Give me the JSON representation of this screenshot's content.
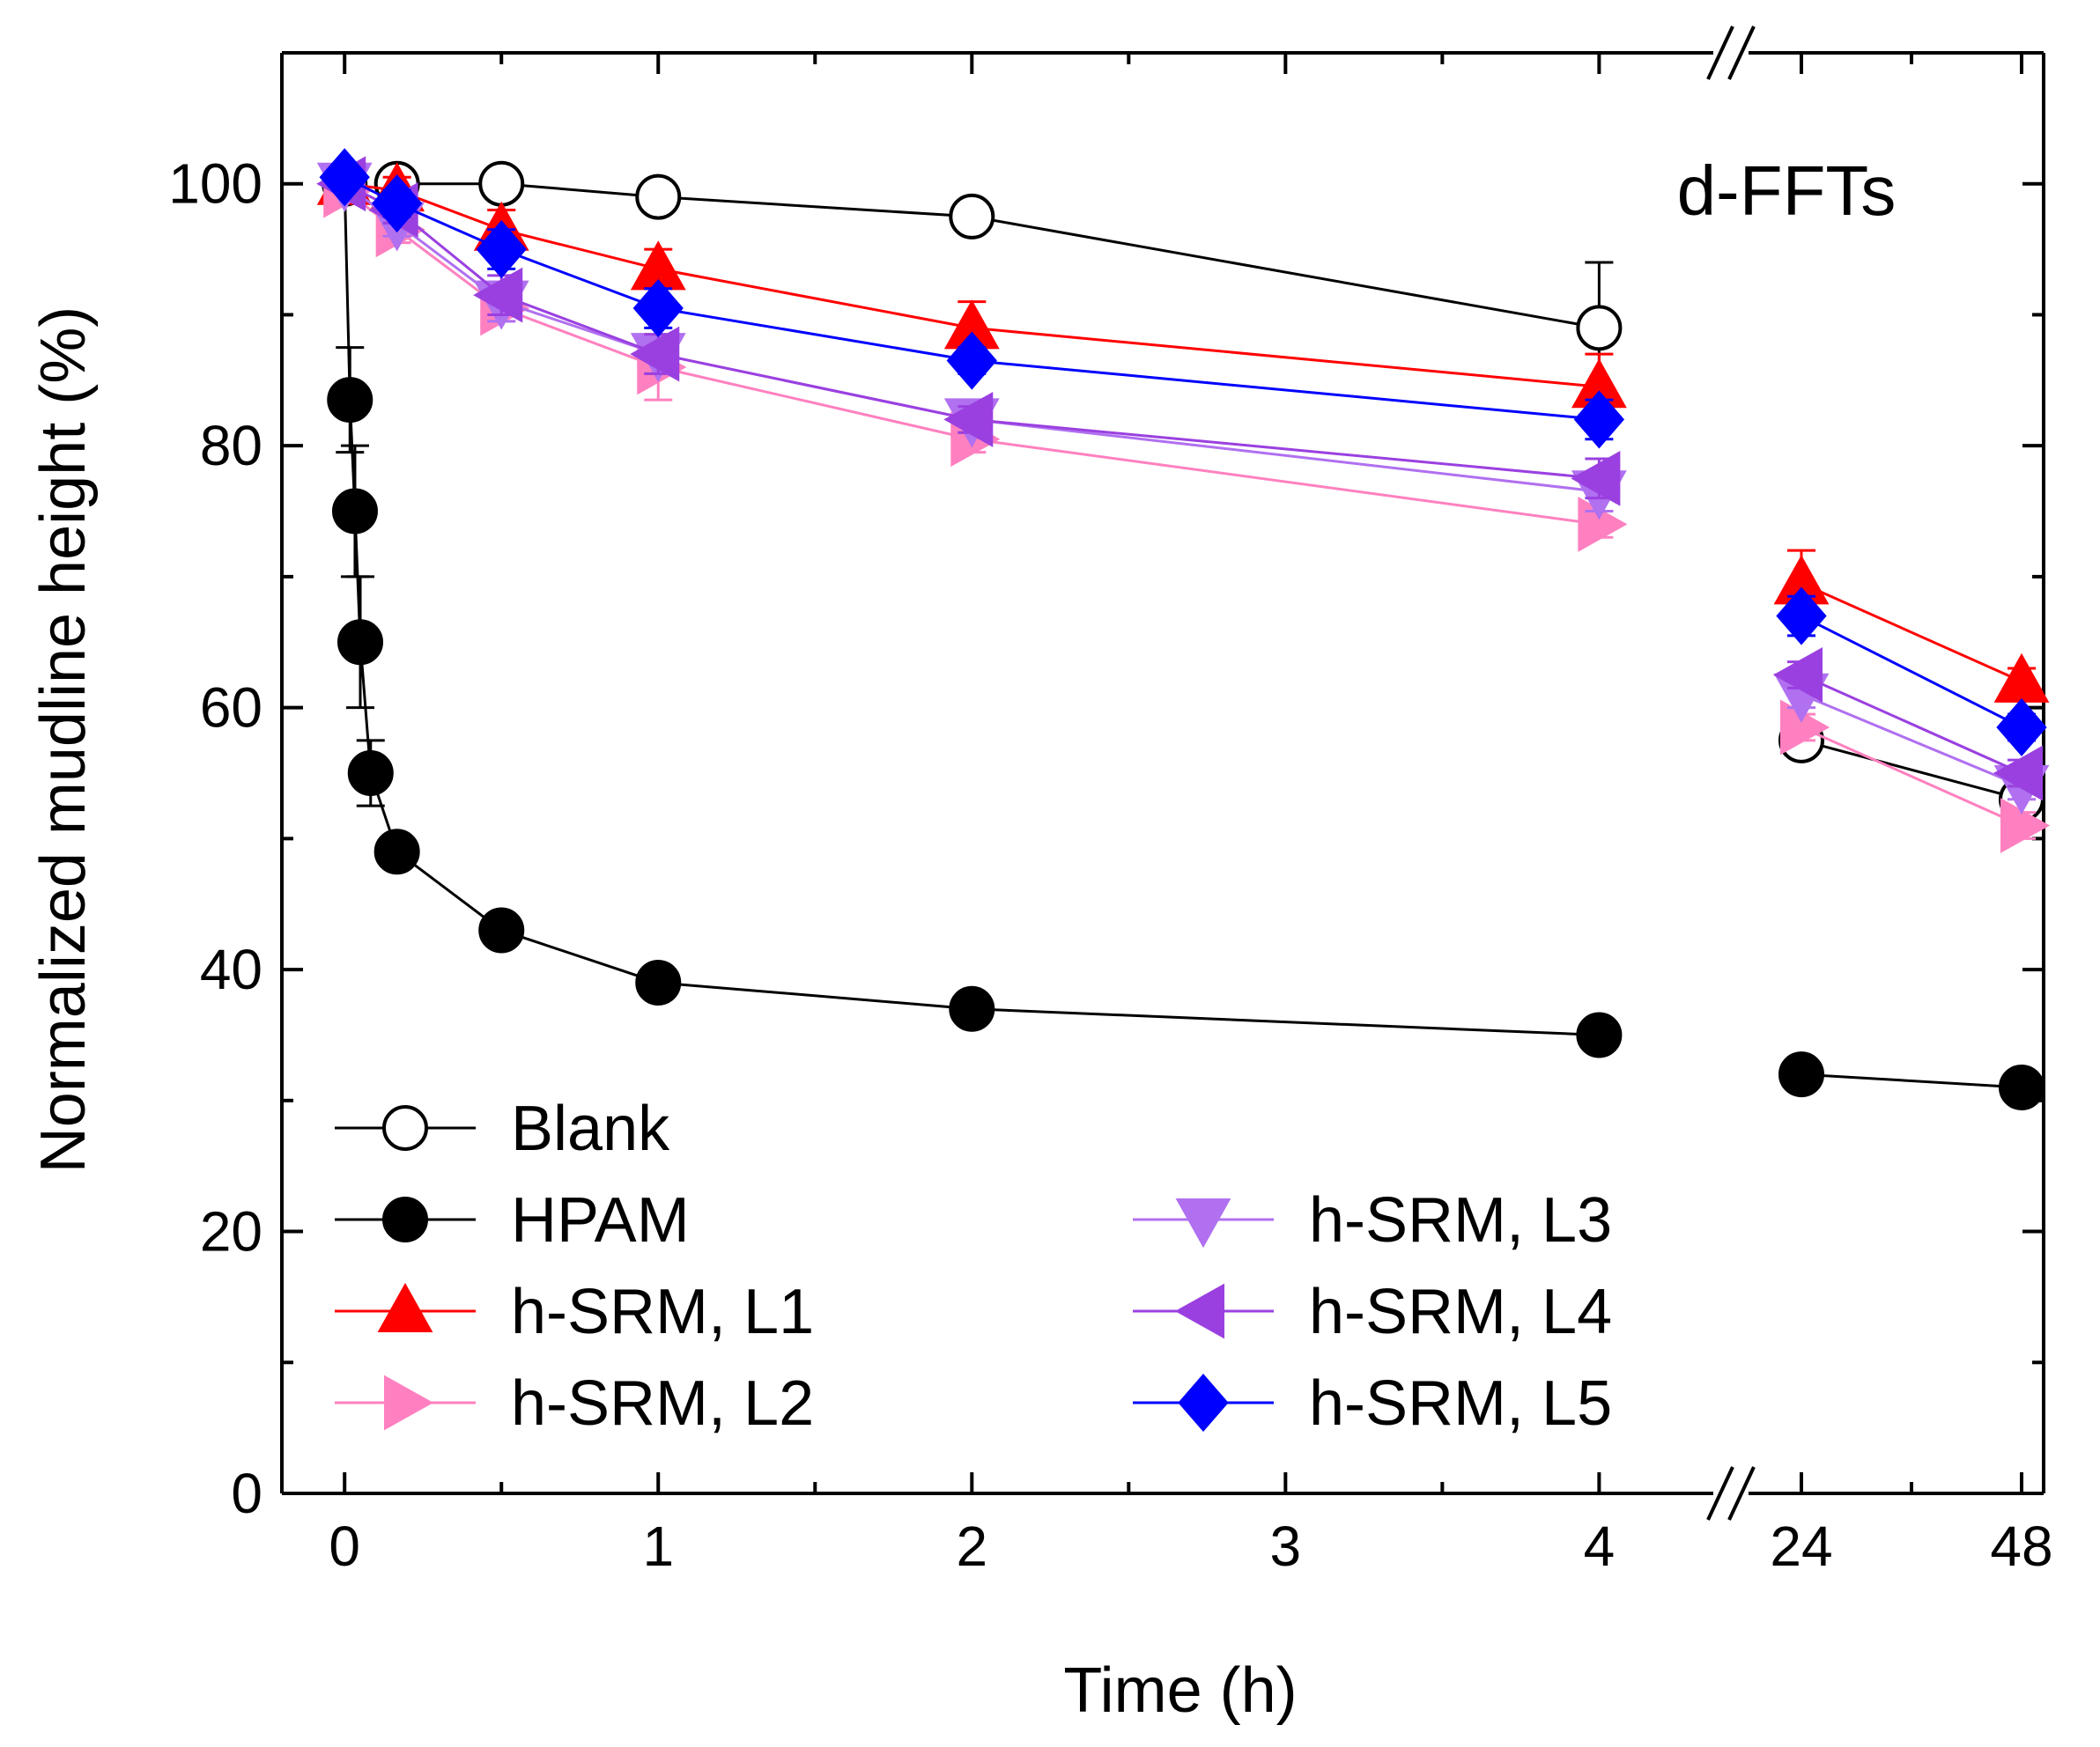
{
  "chart_data": {
    "type": "line",
    "panel_label": "d-FFTs",
    "xlabel": "Time (h)",
    "ylabel": "Normalized mudline height (%)",
    "ylim": [
      0,
      110
    ],
    "x_axis": {
      "broken": true,
      "segment1": {
        "range": [
          -0.2,
          4.35
        ],
        "ticks": [
          "0",
          "1",
          "2",
          "3",
          "4"
        ]
      },
      "segment2": {
        "ticks": [
          "24",
          "48"
        ]
      }
    },
    "y_ticks": [
      "0",
      "20",
      "40",
      "60",
      "80",
      "100"
    ],
    "legend_location": "bottom-left",
    "series": [
      {
        "name": "Blank",
        "color": "#000000",
        "marker": "circle",
        "filled": false,
        "x": [
          0.167,
          0.5,
          1,
          2,
          4,
          24,
          48
        ],
        "y": [
          100,
          100,
          99,
          97.5,
          89,
          57.5,
          53
        ],
        "err": [
          0,
          0,
          0.5,
          0.5,
          5,
          1,
          1
        ]
      },
      {
        "name": "HPAM",
        "color": "#000000",
        "marker": "circle",
        "filled": true,
        "x": [
          0,
          0.017,
          0.033,
          0.05,
          0.083,
          0.167,
          0.5,
          1,
          2,
          4,
          24,
          48
        ],
        "y": [
          100,
          83.5,
          75,
          65,
          55,
          49,
          43,
          39,
          37,
          35,
          32,
          31
        ],
        "err": [
          0,
          4,
          5,
          5,
          2.5,
          1,
          0.5,
          0.5,
          0.5,
          0.5,
          0.5,
          0.5
        ]
      },
      {
        "name": "h-SRM, L1",
        "color": "#ff0000",
        "marker": "triangle-up",
        "filled": true,
        "x": [
          0,
          0.167,
          0.5,
          1,
          2,
          4,
          24,
          48
        ],
        "y": [
          100,
          99.5,
          96.5,
          93.5,
          89,
          84.5,
          69.5,
          62
        ],
        "err": [
          0,
          1,
          1.5,
          1.5,
          2,
          2.5,
          2.5,
          1
        ]
      },
      {
        "name": "h-SRM, L2",
        "color": "#ff80c0",
        "marker": "triangle-right",
        "filled": true,
        "x": [
          0,
          0.167,
          0.5,
          1,
          2,
          4,
          24,
          48
        ],
        "y": [
          99.5,
          96.5,
          90.5,
          86,
          80.5,
          74,
          58.5,
          51
        ],
        "err": [
          0,
          1,
          1,
          2.5,
          1,
          1,
          1,
          1
        ]
      },
      {
        "name": "h-SRM, L3",
        "color": "#b070f0",
        "marker": "triangle-down",
        "filled": true,
        "x": [
          0,
          0.167,
          0.5,
          1,
          2,
          4,
          24,
          48
        ],
        "y": [
          100,
          97,
          91,
          87,
          82,
          76.5,
          61,
          54
        ],
        "err": [
          0,
          1,
          1.5,
          1.5,
          1,
          1.5,
          1,
          1
        ]
      },
      {
        "name": "h-SRM, L4",
        "color": "#9a40e0",
        "marker": "triangle-left",
        "filled": true,
        "x": [
          0,
          0.167,
          0.5,
          1,
          2,
          4,
          24,
          48
        ],
        "y": [
          100,
          98,
          91.5,
          87,
          82,
          77.5,
          62.5,
          55
        ],
        "err": [
          0,
          1,
          1.5,
          1.5,
          1,
          1.5,
          1,
          1
        ]
      },
      {
        "name": "h-SRM, L5",
        "color": "#0000ff",
        "marker": "diamond",
        "filled": true,
        "x": [
          0,
          0.167,
          0.5,
          1,
          2,
          4,
          24,
          48
        ],
        "y": [
          100.5,
          98.5,
          95,
          90.5,
          86.5,
          82,
          67,
          58.5
        ],
        "err": [
          0,
          1,
          1.5,
          1.5,
          1,
          1.5,
          1.5,
          1
        ]
      }
    ]
  }
}
